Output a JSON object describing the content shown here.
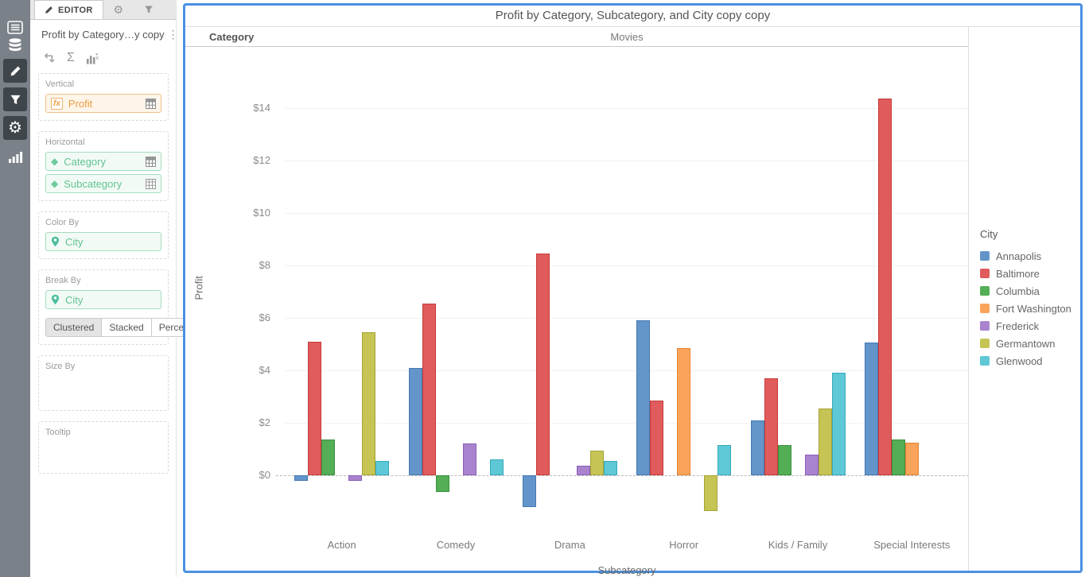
{
  "left_rail": {
    "icons": [
      "list",
      "data-sources",
      "edit",
      "filter",
      "settings",
      "charts"
    ]
  },
  "editor": {
    "tab": "EDITOR",
    "title": "Profit by Category…y copy",
    "menu_glyph": "⋮",
    "sigma_glyph": "Σ",
    "vertical_label": "Vertical",
    "vertical_field": "Profit",
    "vertical_badge": "fx",
    "horizontal_label": "Horizontal",
    "horizontal_fields": [
      "Category",
      "Subcategory"
    ],
    "diamond_glyph": "◆",
    "color_by_label": "Color By",
    "color_by_field": "City",
    "break_by_label": "Break By",
    "break_by_field": "City",
    "break_modes": [
      "Clustered",
      "Stacked",
      "Percent"
    ],
    "active_break_mode": "Clustered",
    "size_by_label": "Size By",
    "tooltip_label": "Tooltip"
  },
  "chart": {
    "title": "Profit by Category, Subcategory, and City copy copy",
    "facet_label": "Category",
    "facet_value": "Movies"
  },
  "chart_data": {
    "type": "bar",
    "title": "Profit by Category, Subcategory, and City copy copy",
    "categories": [
      "Action",
      "Comedy",
      "Drama",
      "Horror",
      "Kids / Family",
      "Special Interests"
    ],
    "series": [
      {
        "name": "Annapolis",
        "color": "#6395CB",
        "border": "#4478B0",
        "values": [
          -0.2,
          4.1,
          -1.2,
          5.9,
          2.1,
          5.05
        ]
      },
      {
        "name": "Baltimore",
        "color": "#E05B5B",
        "border": "#C63B3B",
        "values": [
          5.1,
          6.55,
          8.45,
          2.85,
          3.7,
          14.35
        ]
      },
      {
        "name": "Columbia",
        "color": "#53AE56",
        "border": "#3A8F3D",
        "values": [
          1.35,
          -0.65,
          null,
          null,
          1.15,
          1.35
        ]
      },
      {
        "name": "Fort Washington",
        "color": "#FAA45B",
        "border": "#E5822F",
        "values": [
          null,
          null,
          null,
          4.85,
          null,
          1.25
        ]
      },
      {
        "name": "Frederick",
        "color": "#A983CE",
        "border": "#8A5FB8",
        "values": [
          -0.2,
          1.2,
          0.35,
          null,
          0.8,
          null
        ]
      },
      {
        "name": "Germantown",
        "color": "#C5C454",
        "border": "#A6A437",
        "values": [
          5.45,
          null,
          0.95,
          -1.35,
          2.55,
          null
        ]
      },
      {
        "name": "Glenwood",
        "color": "#5FC8D7",
        "border": "#35AABB",
        "values": [
          0.55,
          0.6,
          0.55,
          1.15,
          3.9,
          null
        ]
      }
    ],
    "xlabel": "Subcategory",
    "ylabel": "Profit",
    "ylim": [
      -2.2,
      15.2
    ],
    "yticks": [
      0,
      2,
      4,
      6,
      8,
      10,
      12,
      14
    ],
    "ytick_prefix": "$",
    "grid": true,
    "zero_line": "dashed",
    "legend_title": "City",
    "legend_position": "right"
  },
  "colors": {
    "panel_border": "#4A90E2",
    "rail_bg": "#7A8188",
    "rail_active_bg": "#3F464B"
  }
}
